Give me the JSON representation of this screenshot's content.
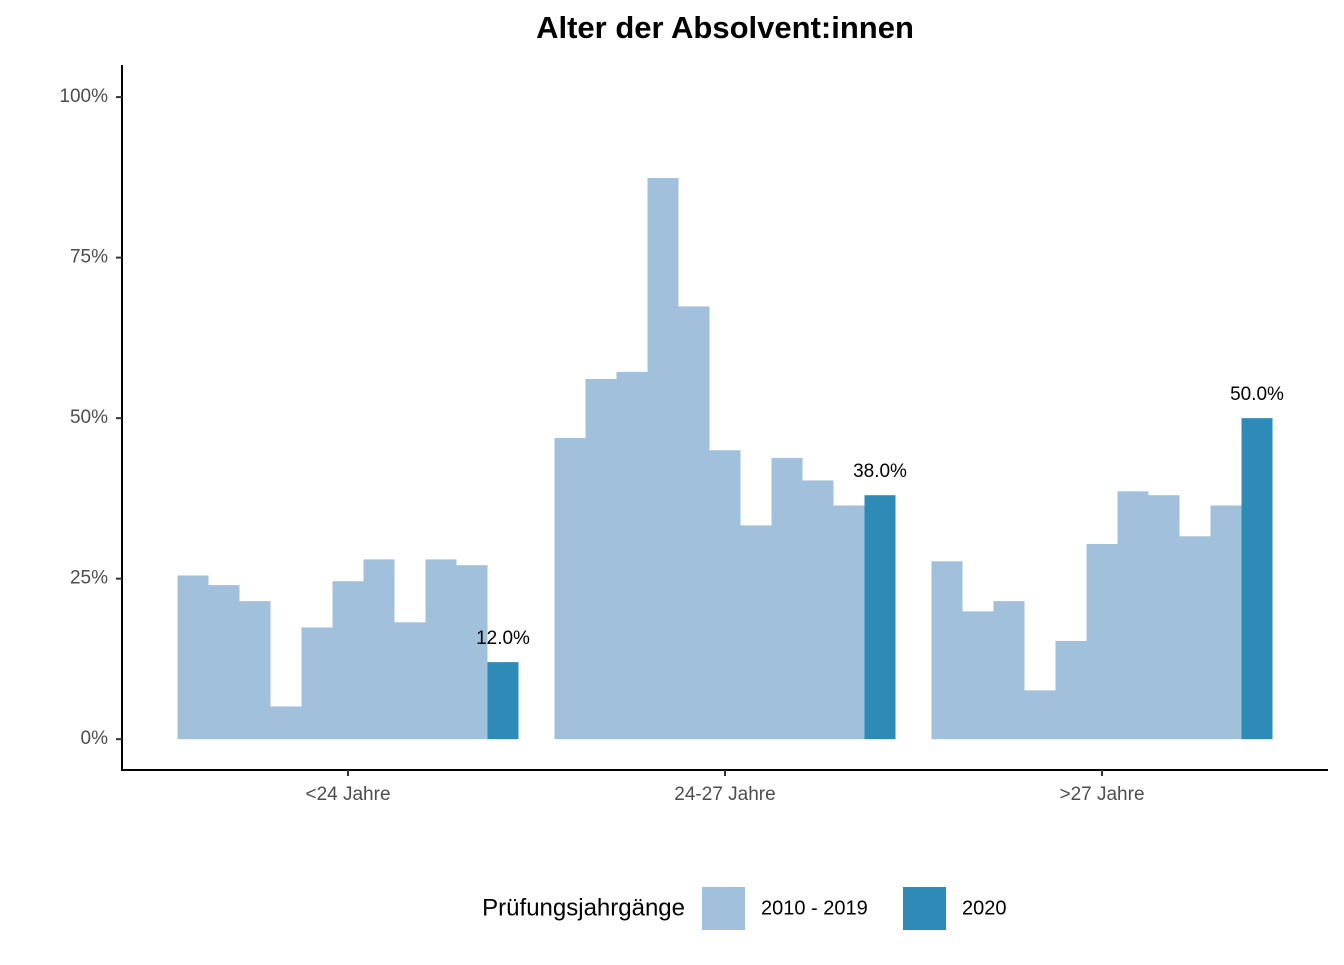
{
  "chart_data": {
    "type": "bar",
    "title": "Alter der Absolvent:innen",
    "categories": [
      "<24 Jahre",
      "24-27 Jahre",
      ">27 Jahre"
    ],
    "legend_title": "Prüfungsjahrgänge",
    "legend_position": "bottom",
    "series": [
      {
        "name": "2010 - 2019",
        "color": "#a1c0dc",
        "values": [
          [
            25.5,
            24.0,
            21.5,
            5.1,
            17.4,
            24.6,
            28.0,
            18.2,
            28.0,
            27.1
          ],
          [
            46.9,
            56.1,
            57.2,
            87.4,
            67.4,
            45.0,
            33.3,
            43.8,
            40.3,
            36.4
          ],
          [
            27.7,
            19.9,
            21.5,
            7.6,
            15.3,
            30.4,
            38.6,
            38.0,
            31.6,
            36.4
          ]
        ]
      },
      {
        "name": "2020",
        "color": "#2e8bb8",
        "values": [
          12.0,
          38.0,
          50.0
        ],
        "value_labels": [
          "12.0%",
          "38.0%",
          "50.0%"
        ]
      }
    ],
    "ylim": [
      -4.8,
      105
    ],
    "yticks": [
      {
        "value": 0,
        "label": "0%"
      },
      {
        "value": 25,
        "label": "25%"
      },
      {
        "value": 50,
        "label": "50%"
      },
      {
        "value": 75,
        "label": "75%"
      },
      {
        "value": 100,
        "label": "100%"
      }
    ]
  }
}
